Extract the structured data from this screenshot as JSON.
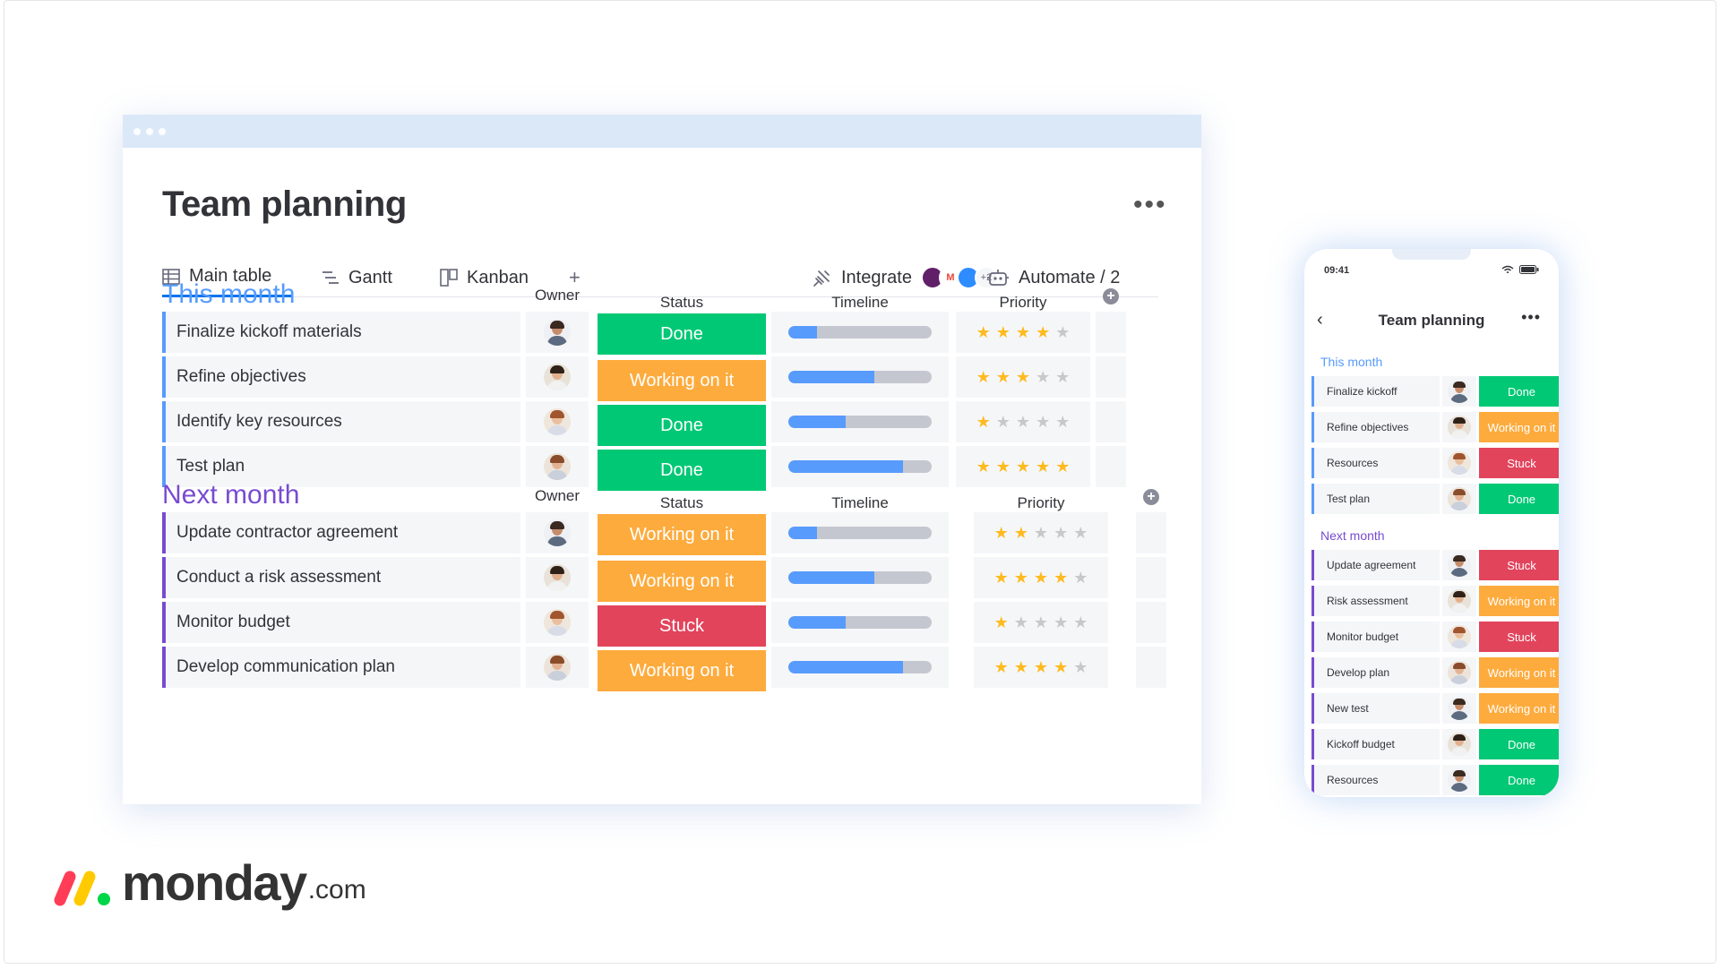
{
  "brand": {
    "word": "monday",
    "suffix": ".com",
    "colors": [
      "#ff3d57",
      "#ffcb00",
      "#00d647"
    ]
  },
  "desktop": {
    "title": "Team planning",
    "more_label": "•••",
    "tabs": [
      {
        "label": "Main table",
        "icon": "table-icon",
        "active": true
      },
      {
        "label": "Gantt",
        "icon": "gantt-icon",
        "active": false
      },
      {
        "label": "Kanban",
        "icon": "kanban-icon",
        "active": false
      }
    ],
    "add_tab": "+",
    "integrate": {
      "label": "Integrate",
      "extra_count": "+2"
    },
    "automate": {
      "label": "Automate / 2"
    },
    "columns": {
      "owner": "Owner",
      "status": "Status",
      "timeline": "Timeline",
      "priority": "Priority"
    },
    "groups": [
      {
        "title": "This month",
        "color": "#579bfc",
        "rows": [
          {
            "name": "Finalize kickoff materials",
            "owner": "person-1",
            "status": "Done",
            "timeline": 0.2,
            "priority": 4
          },
          {
            "name": "Refine objectives",
            "owner": "person-2",
            "status": "Working on it",
            "timeline": 0.6,
            "priority": 3
          },
          {
            "name": "Identify key resources",
            "owner": "person-3",
            "status": "Done",
            "timeline": 0.4,
            "priority": 1
          },
          {
            "name": "Test plan",
            "owner": "person-4",
            "status": "Done",
            "timeline": 0.8,
            "priority": 5
          }
        ]
      },
      {
        "title": "Next month",
        "color": "#784bd1",
        "rows": [
          {
            "name": "Update contractor agreement",
            "owner": "person-1",
            "status": "Working on it",
            "timeline": 0.2,
            "priority": 2
          },
          {
            "name": "Conduct a risk assessment",
            "owner": "person-2",
            "status": "Working on it",
            "timeline": 0.6,
            "priority": 4
          },
          {
            "name": "Monitor budget",
            "owner": "person-3",
            "status": "Stuck",
            "timeline": 0.4,
            "priority": 1
          },
          {
            "name": "Develop communication plan",
            "owner": "person-4",
            "status": "Working on it",
            "timeline": 0.8,
            "priority": 4
          }
        ]
      }
    ]
  },
  "status_colors": {
    "Done": "#00c875",
    "Working on it": "#fdab3d",
    "Stuck": "#e2445c"
  },
  "phone": {
    "time": "09:41",
    "title": "Team planning",
    "back": "‹",
    "more": "•••",
    "groups": [
      {
        "title": "This month",
        "color": "#579bfc",
        "rows": [
          {
            "name": "Finalize kickoff",
            "status": "Done"
          },
          {
            "name": "Refine objectives",
            "status": "Working on it"
          },
          {
            "name": "Resources",
            "status": "Stuck"
          },
          {
            "name": "Test plan",
            "status": "Done"
          }
        ]
      },
      {
        "title": "Next month",
        "color": "#784bd1",
        "rows": [
          {
            "name": "Update agreement",
            "status": "Stuck"
          },
          {
            "name": "Risk assessment",
            "status": "Working on it"
          },
          {
            "name": "Monitor budget",
            "status": "Stuck"
          },
          {
            "name": "Develop plan",
            "status": "Working on it"
          },
          {
            "name": "New test",
            "status": "Working on it"
          },
          {
            "name": "Kickoff budget",
            "status": "Done"
          },
          {
            "name": "Resources",
            "status": "Done"
          }
        ]
      }
    ]
  }
}
